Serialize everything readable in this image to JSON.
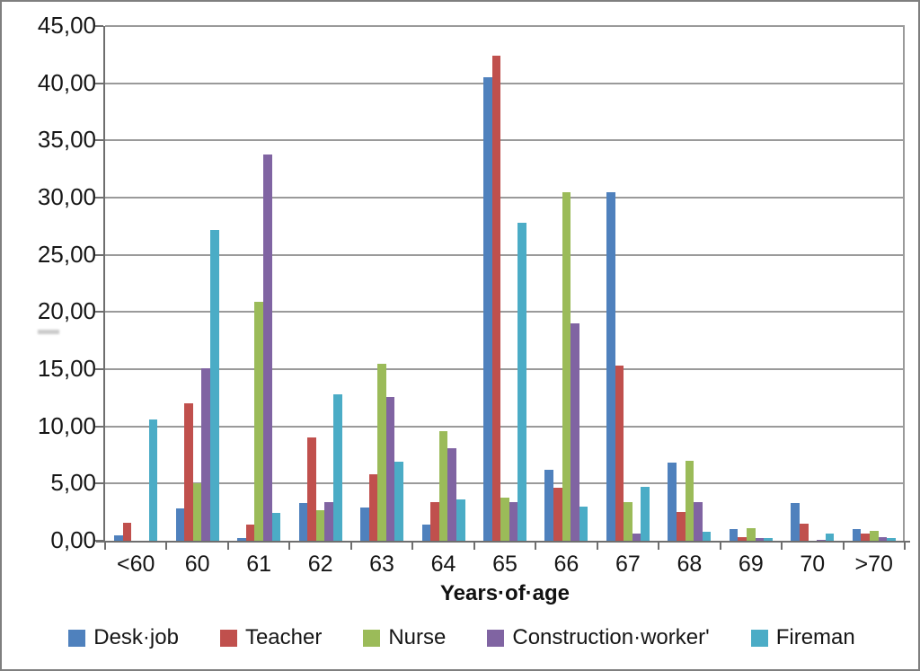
{
  "chart_data": {
    "type": "bar",
    "title": "",
    "xlabel": "Years·of·age",
    "ylabel": "",
    "ylim": [
      0,
      45
    ],
    "ytick_step": 5,
    "ytick_labels": [
      "0,00",
      "5,00",
      "10,00",
      "15,00",
      "20,00",
      "25,00",
      "30,00",
      "35,00",
      "40,00",
      "45,00"
    ],
    "grid": true,
    "legend_position": "bottom",
    "categories": [
      "<60",
      "60",
      "61",
      "62",
      "63",
      "64",
      "65",
      "66",
      "67",
      "68",
      "69",
      "70",
      ">70"
    ],
    "series": [
      {
        "name": "Desk·job",
        "color": "#4F81BD",
        "values": [
          0.5,
          2.8,
          0.2,
          3.3,
          2.9,
          1.4,
          40.5,
          6.2,
          30.5,
          6.8,
          1.0,
          3.3,
          1.0
        ]
      },
      {
        "name": "Teacher",
        "color": "#C0504D",
        "values": [
          1.6,
          12.0,
          1.4,
          9.0,
          5.8,
          3.4,
          42.4,
          4.6,
          15.3,
          2.5,
          0.3,
          1.5,
          0.6
        ]
      },
      {
        "name": "Nurse",
        "color": "#9BBB59",
        "values": [
          0,
          5.0,
          20.9,
          2.7,
          15.5,
          9.6,
          3.8,
          30.5,
          3.4,
          7.0,
          1.1,
          0,
          0.9
        ]
      },
      {
        "name": "Construction·worker'",
        "color": "#8064A2",
        "values": [
          0,
          15.1,
          33.8,
          3.4,
          12.6,
          8.1,
          3.4,
          19.0,
          0.6,
          3.4,
          0.2,
          0.1,
          0.3
        ]
      },
      {
        "name": "Fireman",
        "color": "#4BACC6",
        "values": [
          10.6,
          27.2,
          2.4,
          12.8,
          6.9,
          3.6,
          27.8,
          3.0,
          4.7,
          0.8,
          0.2,
          0.6,
          0.2
        ]
      }
    ]
  }
}
